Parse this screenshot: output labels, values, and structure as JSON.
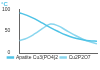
{
  "chart_data": {
    "type": "line",
    "title": "°C",
    "x": [
      0,
      1,
      2,
      3,
      4,
      5,
      6,
      7,
      8,
      9,
      10
    ],
    "series": [
      {
        "name": "Apatite Cu3(PO4)2",
        "color": "#4fc3e6",
        "values": [
          92,
          86,
          78,
          68,
          58,
          49,
          41,
          35,
          31,
          28,
          27
        ]
      },
      {
        "name": "Cu2P2O7",
        "color": "#8ad6ee",
        "values": [
          28,
          34,
          44,
          56,
          66,
          62,
          52,
          42,
          33,
          26,
          21
        ]
      }
    ],
    "xlim": [
      0,
      10
    ],
    "ylim": [
      0,
      100
    ],
    "yticks": [
      0,
      50,
      100
    ],
    "grid": false,
    "legend": "bottom",
    "tick_labels": "y"
  }
}
